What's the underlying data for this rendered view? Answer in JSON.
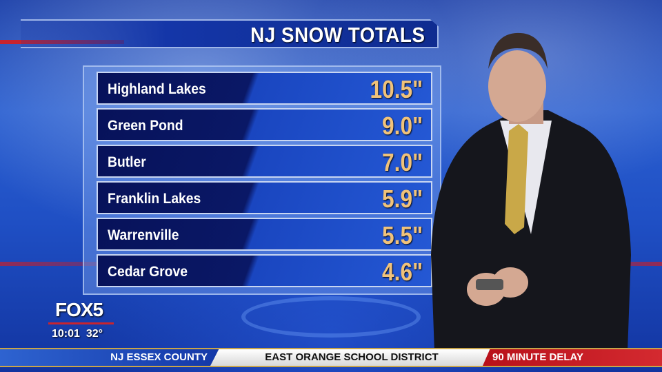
{
  "title": "NJ SNOW TOTALS",
  "rows": [
    {
      "location": "Highland Lakes",
      "total": "10.5\""
    },
    {
      "location": "Green Pond",
      "total": "9.0\""
    },
    {
      "location": "Butler",
      "total": "7.0\""
    },
    {
      "location": "Franklin Lakes",
      "total": "5.9\""
    },
    {
      "location": "Warrenville",
      "total": "5.5\""
    },
    {
      "location": "Cedar Grove",
      "total": "4.6\""
    }
  ],
  "bug": {
    "logo": "FOX5",
    "time": "10:01",
    "temp": "32°"
  },
  "ticker": {
    "region": "NJ ESSEX COUNTY",
    "district": "EAST ORANGE SCHOOL DISTRICT",
    "status": "90 MINUTE DELAY"
  },
  "colors": {
    "value_text": "#f0c27a",
    "accent_red": "#c8242e",
    "panel_blue": "#1436a8"
  }
}
